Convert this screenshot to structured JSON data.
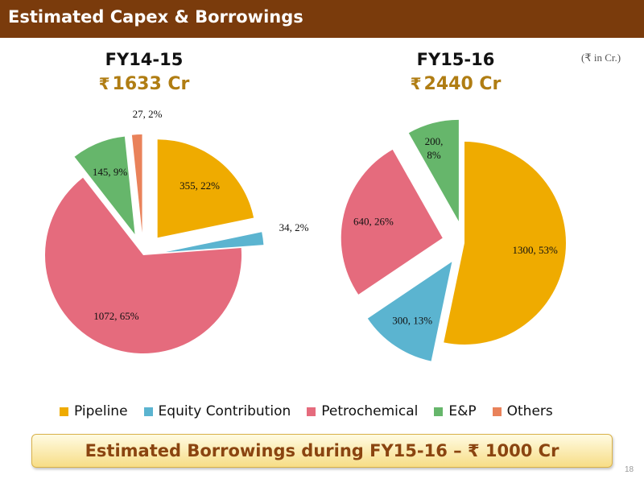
{
  "header": {
    "title": "Estimated Capex & Borrowings"
  },
  "unit_note": "(₹ in Cr.)",
  "colors": {
    "header_bg": "#7a3b0c",
    "total_text": "#b07d13",
    "borrow_text": "#8a4410",
    "Pipeline": "#efab00",
    "Equity Contribution": "#5bb4d0",
    "Petrochemical": "#e56b7d",
    "E&P": "#66b66b",
    "Others": "#e9825a"
  },
  "chart_data": [
    {
      "type": "pie",
      "title": "FY14-15",
      "total_label": "1633 Cr",
      "currency_symbol": "₹",
      "categories": [
        "Pipeline",
        "Equity Contribution",
        "Petrochemical",
        "E&P",
        "Others"
      ],
      "values": [
        355,
        34,
        1072,
        145,
        27
      ],
      "percentages": [
        22,
        2,
        65,
        9,
        2
      ],
      "data_labels": [
        "355, 22%",
        "34, 2%",
        "1072, 65%",
        "145, 9%",
        "27, 2%"
      ],
      "exploded": true
    },
    {
      "type": "pie",
      "title": "FY15-16",
      "total_label": "2440 Cr",
      "currency_symbol": "₹",
      "categories": [
        "Pipeline",
        "Equity Contribution",
        "Petrochemical",
        "E&P"
      ],
      "values": [
        1300,
        300,
        640,
        200
      ],
      "percentages": [
        53,
        13,
        26,
        8
      ],
      "data_labels": [
        "1300, 53%",
        "300, 13%",
        "640, 26%",
        "200, 8%"
      ],
      "exploded": true
    }
  ],
  "legend": {
    "placement": "bottom",
    "items": [
      "Pipeline",
      "Equity Contribution",
      "Petrochemical",
      "E&P",
      "Others"
    ]
  },
  "borrowings": {
    "prefix": "Estimated Borrowings during FY15-16 –",
    "symbol": "₹",
    "amount": "1000 Cr"
  },
  "page_number": "18"
}
